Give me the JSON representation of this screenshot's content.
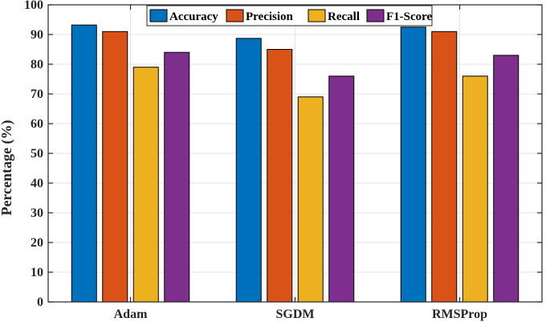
{
  "chart_data": {
    "type": "bar",
    "title": "",
    "xlabel": "",
    "ylabel": "Percentage (%)",
    "ylim": [
      0,
      100
    ],
    "yticks": [
      0,
      10,
      20,
      30,
      40,
      50,
      60,
      70,
      80,
      90,
      100
    ],
    "grid": true,
    "legend_position": "top-center",
    "categories": [
      "Adam",
      "SGDM",
      "RMSProp"
    ],
    "series": [
      {
        "name": "Accuracy",
        "color": "#0072BD",
        "values": [
          93.2,
          88.7,
          92.5
        ]
      },
      {
        "name": "Precision",
        "color": "#D95319",
        "values": [
          91,
          85,
          91
        ]
      },
      {
        "name": "Recall",
        "color": "#EDB120",
        "values": [
          79,
          69,
          76
        ]
      },
      {
        "name": "F1-Score",
        "color": "#7E2F8E",
        "values": [
          84,
          76,
          83
        ]
      }
    ]
  }
}
